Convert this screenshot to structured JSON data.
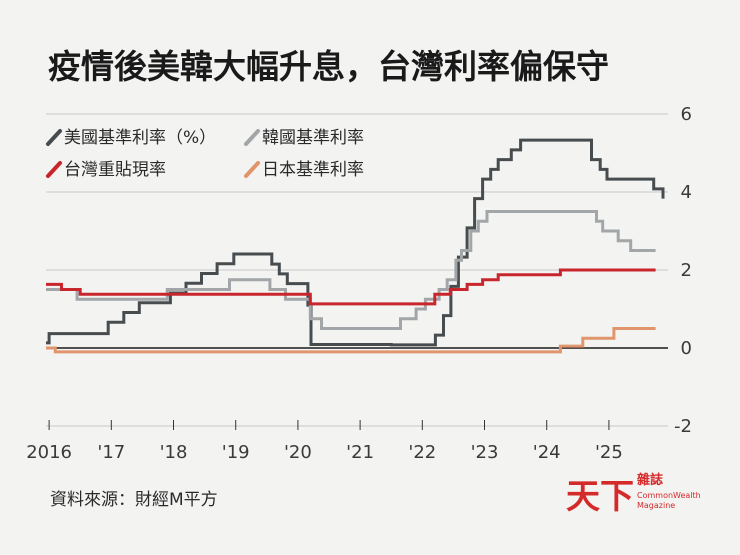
{
  "chart_data": {
    "type": "line",
    "title": "疫情後美韓大幅升息，台灣利率偏保守",
    "x_ticks": [
      "2016",
      "'17",
      "'18",
      "'19",
      "'20",
      "'21",
      "'22",
      "'23",
      "'24",
      "'25"
    ],
    "x_tick_values": [
      2016,
      2017,
      2018,
      2019,
      2020,
      2021,
      2022,
      2023,
      2024,
      2025
    ],
    "xlim": [
      2015.95,
      2025.95
    ],
    "ylim": [
      -2,
      6
    ],
    "y_ticks": [
      6,
      4,
      2,
      0,
      -2
    ],
    "grid": "horizontal",
    "legend_placement": "top-left",
    "series": [
      {
        "name": "美國基準利率（%）",
        "color": "#474c4f",
        "step": true,
        "points": [
          [
            2015.95,
            0.13
          ],
          [
            2016.0,
            0.37
          ],
          [
            2016.95,
            0.66
          ],
          [
            2017.2,
            0.91
          ],
          [
            2017.45,
            1.16
          ],
          [
            2017.95,
            1.41
          ],
          [
            2018.2,
            1.66
          ],
          [
            2018.45,
            1.91
          ],
          [
            2018.7,
            2.16
          ],
          [
            2018.97,
            2.41
          ],
          [
            2019.58,
            2.15
          ],
          [
            2019.7,
            1.9
          ],
          [
            2019.83,
            1.65
          ],
          [
            2020.16,
            1.1
          ],
          [
            2020.21,
            0.09
          ],
          [
            2021.5,
            0.08
          ],
          [
            2022.21,
            0.33
          ],
          [
            2022.34,
            0.83
          ],
          [
            2022.46,
            1.58
          ],
          [
            2022.58,
            2.33
          ],
          [
            2022.72,
            3.08
          ],
          [
            2022.84,
            3.83
          ],
          [
            2022.97,
            4.33
          ],
          [
            2023.1,
            4.58
          ],
          [
            2023.22,
            4.83
          ],
          [
            2023.43,
            5.08
          ],
          [
            2023.58,
            5.33
          ],
          [
            2024.72,
            4.83
          ],
          [
            2024.86,
            4.58
          ],
          [
            2024.97,
            4.33
          ],
          [
            2025.72,
            4.08
          ],
          [
            2025.87,
            3.83
          ]
        ]
      },
      {
        "name": "韓國基準利率",
        "color": "#a2a6a8",
        "step": true,
        "points": [
          [
            2015.95,
            1.5
          ],
          [
            2016.45,
            1.25
          ],
          [
            2017.9,
            1.5
          ],
          [
            2018.9,
            1.75
          ],
          [
            2019.55,
            1.5
          ],
          [
            2019.8,
            1.25
          ],
          [
            2020.2,
            0.75
          ],
          [
            2020.38,
            0.5
          ],
          [
            2021.65,
            0.75
          ],
          [
            2021.9,
            1.0
          ],
          [
            2022.05,
            1.25
          ],
          [
            2022.27,
            1.5
          ],
          [
            2022.4,
            1.75
          ],
          [
            2022.54,
            2.25
          ],
          [
            2022.63,
            2.5
          ],
          [
            2022.78,
            3.0
          ],
          [
            2022.9,
            3.25
          ],
          [
            2023.04,
            3.5
          ],
          [
            2024.8,
            3.25
          ],
          [
            2024.9,
            3.0
          ],
          [
            2025.15,
            2.75
          ],
          [
            2025.35,
            2.5
          ],
          [
            2025.75,
            2.5
          ]
        ]
      },
      {
        "name": "台灣重貼現率",
        "color": "#c8262c",
        "step": true,
        "points": [
          [
            2015.95,
            1.63
          ],
          [
            2016.2,
            1.5
          ],
          [
            2016.5,
            1.38
          ],
          [
            2020.2,
            1.13
          ],
          [
            2022.2,
            1.38
          ],
          [
            2022.45,
            1.5
          ],
          [
            2022.72,
            1.63
          ],
          [
            2022.97,
            1.75
          ],
          [
            2023.22,
            1.88
          ],
          [
            2024.22,
            2.0
          ],
          [
            2025.75,
            2.0
          ]
        ]
      },
      {
        "name": "日本基準利率",
        "color": "#e0956c",
        "step": true,
        "points": [
          [
            2015.95,
            0.0
          ],
          [
            2016.1,
            -0.1
          ],
          [
            2024.22,
            0.05
          ],
          [
            2024.58,
            0.25
          ],
          [
            2025.08,
            0.5
          ],
          [
            2025.75,
            0.5
          ]
        ]
      }
    ]
  },
  "source": "資料來源：財經M平方",
  "logo": {
    "main": "天下",
    "sub": "雜誌",
    "en_line1": "CommonWealth",
    "en_line2": "Magazine",
    "color": "#d42a2a"
  }
}
